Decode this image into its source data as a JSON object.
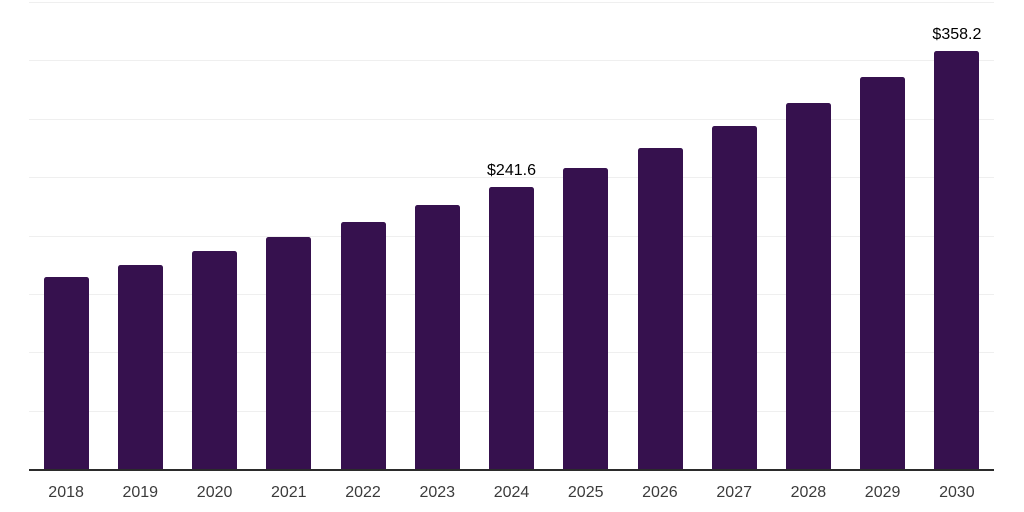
{
  "chart_data": {
    "type": "bar",
    "title": "",
    "xlabel": "",
    "ylabel": "",
    "categories": [
      "2018",
      "2019",
      "2020",
      "2021",
      "2022",
      "2023",
      "2024",
      "2025",
      "2026",
      "2027",
      "2028",
      "2029",
      "2030"
    ],
    "values": [
      164.7,
      175.0,
      186.6,
      199.0,
      211.7,
      226.0,
      241.6,
      258.0,
      275.1,
      294.1,
      313.7,
      335.8,
      358.2
    ],
    "data_labels": {
      "2024": "$241.6",
      "2030": "$358.2"
    },
    "ylim": [
      0,
      400
    ],
    "grid_step": 50,
    "grid": "horizontal-only",
    "legend": "none",
    "colors": {
      "bar": "#36114E",
      "gridline": "#EFEFEF",
      "axis_line": "#2B2B2B",
      "tick_label": "#3B3B3B",
      "data_label": "#000000",
      "background": "#FFFFFF"
    }
  }
}
